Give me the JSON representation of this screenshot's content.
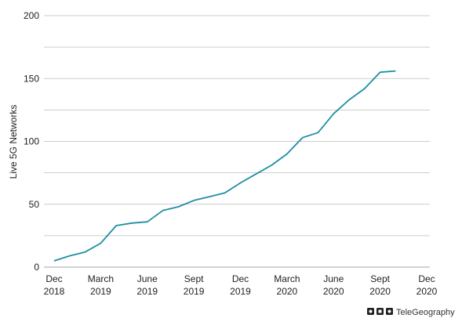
{
  "chart_data": {
    "type": "line",
    "ylabel": "Live 5G Networks",
    "xlabel": "",
    "ylim": [
      0,
      200
    ],
    "yticks": [
      0,
      50,
      100,
      150,
      200
    ],
    "grid": true,
    "x_ticks": [
      {
        "month": 0,
        "label": [
          "Dec",
          "2018"
        ]
      },
      {
        "month": 3,
        "label": [
          "March",
          "2019"
        ]
      },
      {
        "month": 6,
        "label": [
          "June",
          "2019"
        ]
      },
      {
        "month": 9,
        "label": [
          "Sept",
          "2019"
        ]
      },
      {
        "month": 12,
        "label": [
          "Dec",
          "2019"
        ]
      },
      {
        "month": 15,
        "label": [
          "March",
          "2020"
        ]
      },
      {
        "month": 18,
        "label": [
          "June",
          "2020"
        ]
      },
      {
        "month": 21,
        "label": [
          "Sept",
          "2020"
        ]
      },
      {
        "month": 24,
        "label": [
          "Dec",
          "2020"
        ]
      }
    ],
    "series": [
      {
        "color": "#1f8ea3",
        "points": [
          [
            0,
            5
          ],
          [
            1,
            9
          ],
          [
            2,
            12
          ],
          [
            3,
            19
          ],
          [
            4,
            33
          ],
          [
            5,
            35
          ],
          [
            6,
            36
          ],
          [
            7,
            45
          ],
          [
            8,
            48
          ],
          [
            9,
            53
          ],
          [
            10,
            56
          ],
          [
            11,
            59
          ],
          [
            12,
            67
          ],
          [
            13,
            74
          ],
          [
            14,
            81
          ],
          [
            15,
            90
          ],
          [
            16,
            103
          ],
          [
            17,
            107
          ],
          [
            18,
            122
          ],
          [
            19,
            133
          ],
          [
            20,
            142
          ],
          [
            21,
            155
          ],
          [
            22,
            156
          ]
        ]
      }
    ]
  },
  "branding": {
    "logo_text": "TeleGeography",
    "logo_icon": "telegeography-logo-icon"
  }
}
